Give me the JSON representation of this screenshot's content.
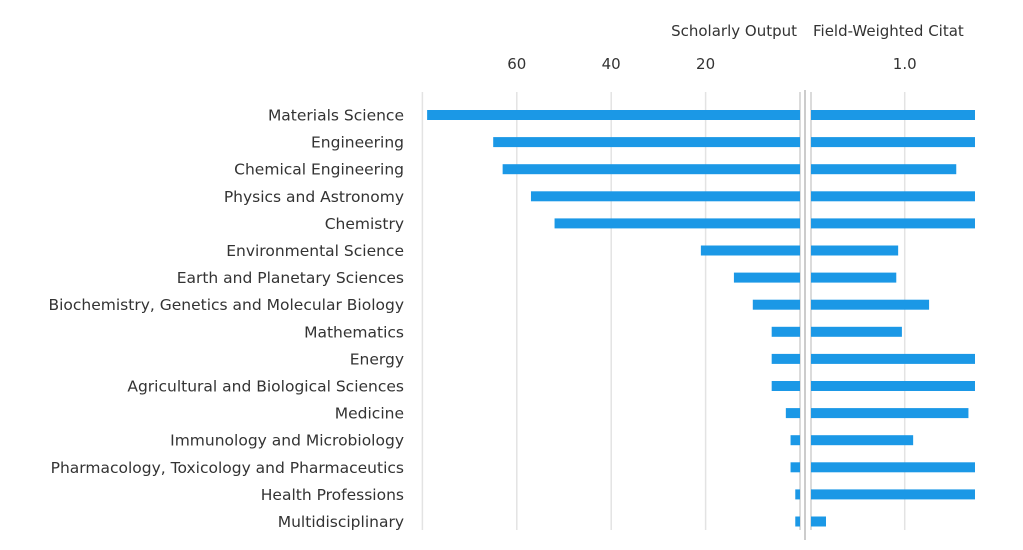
{
  "chart_data": {
    "type": "bar",
    "orientation": "horizontal",
    "bar_color": "#1b98e6",
    "categories": [
      "Materials Science",
      "Engineering",
      "Chemical Engineering",
      "Physics and Astronomy",
      "Chemistry",
      "Environmental Science",
      "Earth and Planetary Sciences",
      "Biochemistry, Genetics and Molecular Biology",
      "Mathematics",
      "Energy",
      "Agricultural and Biological Sciences",
      "Medicine",
      "Immunology and Microbiology",
      "Pharmacology, Toxicology and Pharmaceutics",
      "Health Professions",
      "Multidisciplinary"
    ],
    "series": [
      {
        "name": "Scholarly Output",
        "title": "Scholarly Output",
        "direction": "leftward",
        "xlim": [
          0,
          80
        ],
        "ticks": [
          60,
          40,
          20
        ],
        "tick_labels": [
          "60",
          "40",
          "20"
        ],
        "values": [
          79,
          65,
          63,
          57,
          52,
          21,
          14,
          10,
          6,
          6,
          6,
          3,
          2,
          2,
          1,
          1
        ]
      },
      {
        "name": "Field-Weighted Citation Impact",
        "title": "Field-Weighted Citat",
        "direction": "rightward",
        "xlim": [
          0,
          1.75
        ],
        "ticks": [
          1.0
        ],
        "tick_labels": [
          "1.0"
        ],
        "values": [
          2.0,
          2.0,
          1.55,
          2.0,
          2.0,
          0.93,
          0.91,
          1.26,
          0.97,
          2.0,
          2.0,
          1.68,
          1.09,
          2.0,
          2.0,
          0.16
        ],
        "note": "values >= 1.75 are clipped at the visible panel edge"
      }
    ],
    "grid": true,
    "legend": "none"
  }
}
